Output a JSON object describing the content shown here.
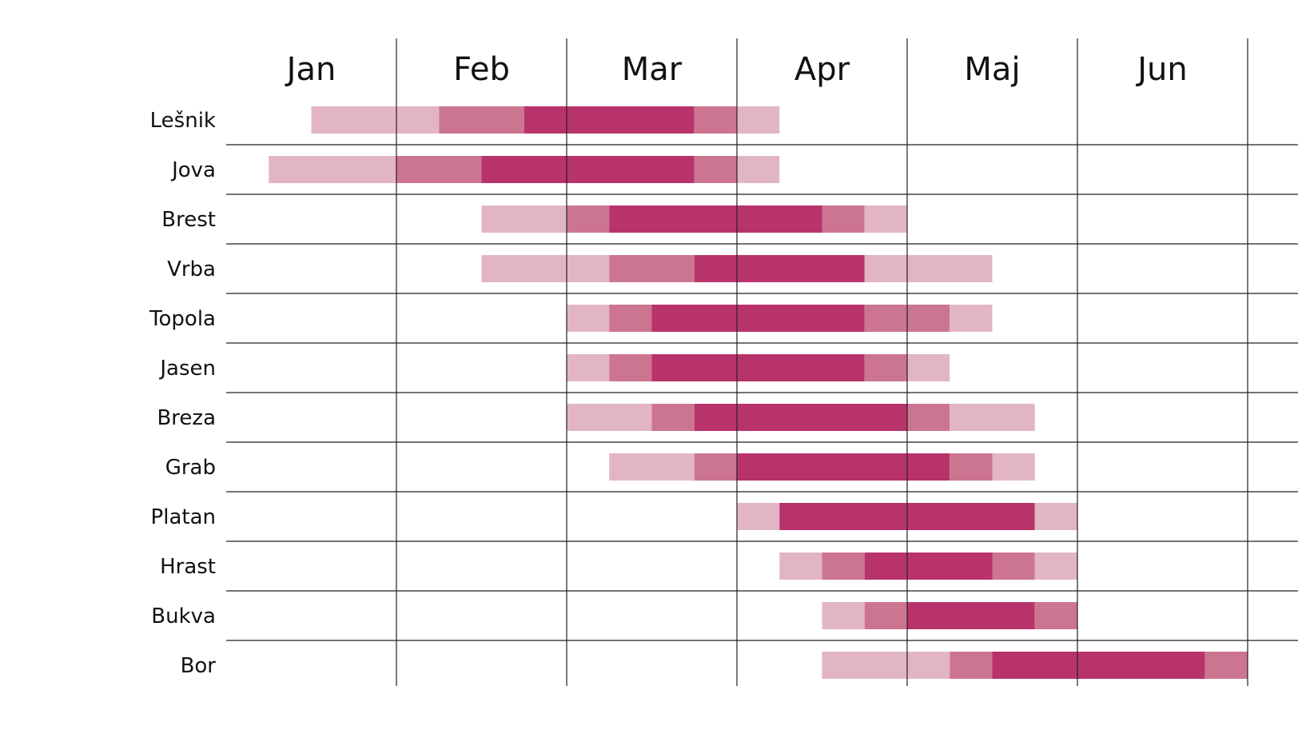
{
  "chart_data": {
    "type": "bar",
    "subtype": "stacked-horizontal-timeline",
    "months": [
      "Jan",
      "Feb",
      "Mar",
      "Apr",
      "Maj",
      "Jun"
    ],
    "intensity_colors": {
      "low": "#e2b5c5",
      "medium": "#cc7591",
      "high": "#b9336b"
    },
    "grid_color": "#222222",
    "rows": [
      {
        "name": "Lešnik",
        "segments": [
          {
            "start": 0.5,
            "end": 1.25,
            "level": "low"
          },
          {
            "start": 1.25,
            "end": 1.75,
            "level": "medium"
          },
          {
            "start": 1.75,
            "end": 2.75,
            "level": "high"
          },
          {
            "start": 2.75,
            "end": 3.0,
            "level": "medium"
          },
          {
            "start": 3.0,
            "end": 3.25,
            "level": "low"
          }
        ]
      },
      {
        "name": "Jova",
        "segments": [
          {
            "start": 0.25,
            "end": 1.0,
            "level": "low"
          },
          {
            "start": 1.0,
            "end": 1.5,
            "level": "medium"
          },
          {
            "start": 1.5,
            "end": 2.75,
            "level": "high"
          },
          {
            "start": 2.75,
            "end": 3.0,
            "level": "medium"
          },
          {
            "start": 3.0,
            "end": 3.25,
            "level": "low"
          }
        ]
      },
      {
        "name": "Brest",
        "segments": [
          {
            "start": 1.5,
            "end": 2.0,
            "level": "low"
          },
          {
            "start": 2.0,
            "end": 2.25,
            "level": "medium"
          },
          {
            "start": 2.25,
            "end": 3.5,
            "level": "high"
          },
          {
            "start": 3.5,
            "end": 3.75,
            "level": "medium"
          },
          {
            "start": 3.75,
            "end": 4.0,
            "level": "low"
          }
        ]
      },
      {
        "name": "Vrba",
        "segments": [
          {
            "start": 1.5,
            "end": 2.25,
            "level": "low"
          },
          {
            "start": 2.25,
            "end": 2.75,
            "level": "medium"
          },
          {
            "start": 2.75,
            "end": 3.75,
            "level": "high"
          },
          {
            "start": 3.75,
            "end": 4.5,
            "level": "low"
          }
        ]
      },
      {
        "name": "Topola",
        "segments": [
          {
            "start": 2.0,
            "end": 2.25,
            "level": "low"
          },
          {
            "start": 2.25,
            "end": 2.5,
            "level": "medium"
          },
          {
            "start": 2.5,
            "end": 3.75,
            "level": "high"
          },
          {
            "start": 3.75,
            "end": 4.25,
            "level": "medium"
          },
          {
            "start": 4.25,
            "end": 4.5,
            "level": "low"
          }
        ]
      },
      {
        "name": "Jasen",
        "segments": [
          {
            "start": 2.0,
            "end": 2.25,
            "level": "low"
          },
          {
            "start": 2.25,
            "end": 2.5,
            "level": "medium"
          },
          {
            "start": 2.5,
            "end": 3.75,
            "level": "high"
          },
          {
            "start": 3.75,
            "end": 4.0,
            "level": "medium"
          },
          {
            "start": 4.0,
            "end": 4.25,
            "level": "low"
          }
        ]
      },
      {
        "name": "Breza",
        "segments": [
          {
            "start": 2.0,
            "end": 2.5,
            "level": "low"
          },
          {
            "start": 2.5,
            "end": 2.75,
            "level": "medium"
          },
          {
            "start": 2.75,
            "end": 4.0,
            "level": "high"
          },
          {
            "start": 4.0,
            "end": 4.25,
            "level": "medium"
          },
          {
            "start": 4.25,
            "end": 4.75,
            "level": "low"
          }
        ]
      },
      {
        "name": "Grab",
        "segments": [
          {
            "start": 2.25,
            "end": 2.75,
            "level": "low"
          },
          {
            "start": 2.75,
            "end": 3.0,
            "level": "medium"
          },
          {
            "start": 3.0,
            "end": 4.25,
            "level": "high"
          },
          {
            "start": 4.25,
            "end": 4.5,
            "level": "medium"
          },
          {
            "start": 4.5,
            "end": 4.75,
            "level": "low"
          }
        ]
      },
      {
        "name": "Platan",
        "segments": [
          {
            "start": 3.0,
            "end": 3.25,
            "level": "low"
          },
          {
            "start": 3.25,
            "end": 4.75,
            "level": "high"
          },
          {
            "start": 4.75,
            "end": 5.0,
            "level": "low"
          }
        ]
      },
      {
        "name": "Hrast",
        "segments": [
          {
            "start": 3.25,
            "end": 3.5,
            "level": "low"
          },
          {
            "start": 3.5,
            "end": 3.75,
            "level": "medium"
          },
          {
            "start": 3.75,
            "end": 4.5,
            "level": "high"
          },
          {
            "start": 4.5,
            "end": 4.75,
            "level": "medium"
          },
          {
            "start": 4.75,
            "end": 5.0,
            "level": "low"
          }
        ]
      },
      {
        "name": "Bukva",
        "segments": [
          {
            "start": 3.5,
            "end": 3.75,
            "level": "low"
          },
          {
            "start": 3.75,
            "end": 4.0,
            "level": "medium"
          },
          {
            "start": 4.0,
            "end": 4.75,
            "level": "high"
          },
          {
            "start": 4.75,
            "end": 5.0,
            "level": "medium"
          }
        ]
      },
      {
        "name": "Bor",
        "segments": [
          {
            "start": 3.5,
            "end": 4.25,
            "level": "low"
          },
          {
            "start": 4.25,
            "end": 4.5,
            "level": "medium"
          },
          {
            "start": 4.5,
            "end": 5.75,
            "level": "high"
          },
          {
            "start": 5.75,
            "end": 6.0,
            "level": "medium"
          }
        ]
      }
    ]
  }
}
